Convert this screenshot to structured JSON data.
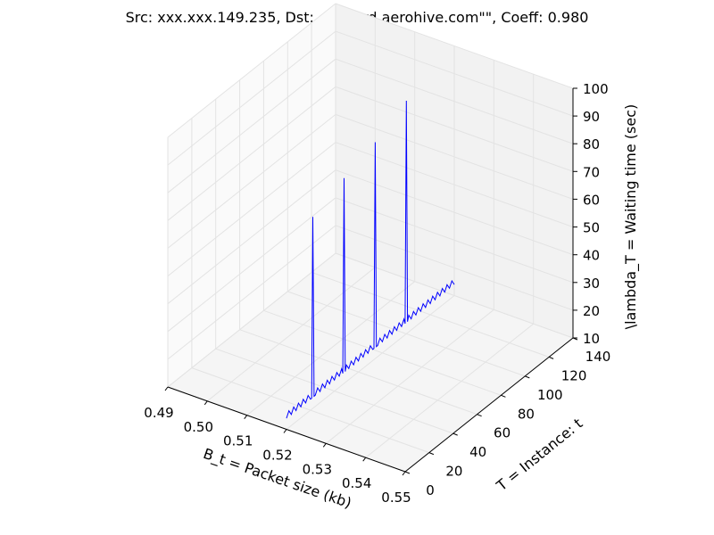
{
  "chart_data": {
    "type": "line",
    "projection": "3d",
    "title": "Src: xxx.xxx.149.235, Dst: cloud-rd.aerohive.com\"\", Coeff: 0.980",
    "xlabel": "B_t = Packet size (kb)",
    "ylabel": "T = Instance: t",
    "zlabel": "\\lambda_T = Waiting time (sec)",
    "xlim": [
      0.49,
      0.55
    ],
    "ylim": [
      0,
      140
    ],
    "zlim": [
      10,
      100
    ],
    "x_ticks": [
      "0.49",
      "0.50",
      "0.51",
      "0.52",
      "0.53",
      "0.54",
      "0.55"
    ],
    "y_ticks": [
      "0",
      "20",
      "40",
      "60",
      "80",
      "100",
      "120",
      "140"
    ],
    "z_ticks": [
      "10",
      "20",
      "30",
      "40",
      "50",
      "60",
      "70",
      "80",
      "90",
      "100"
    ],
    "grid": true,
    "color": "#0000ff",
    "series": [
      {
        "baseline": {
          "x": 0.52,
          "y_start": 0,
          "y_end": 141,
          "z_low": 14,
          "z_high": 16,
          "step": 2
        },
        "spikes": [
          {
            "y": 22,
            "z": 79
          },
          {
            "y": 48,
            "z": 84
          },
          {
            "y": 74,
            "z": 88
          },
          {
            "y": 100,
            "z": 94
          }
        ]
      }
    ]
  }
}
